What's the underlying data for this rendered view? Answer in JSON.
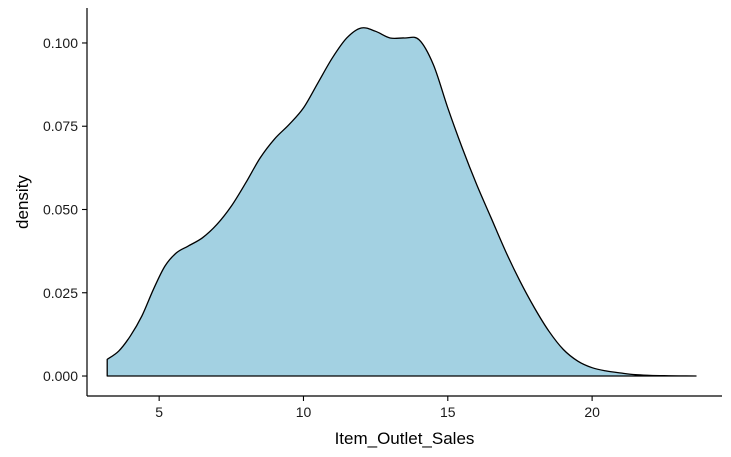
{
  "chart_data": {
    "type": "area",
    "title": "",
    "xlabel": "Item_Outlet_Sales",
    "ylabel": "density",
    "xlim": [
      2.5,
      24.5
    ],
    "ylim": [
      -0.006,
      0.1105
    ],
    "x_ticks": [
      5,
      10,
      15,
      20
    ],
    "y_ticks": [
      0.0,
      0.025,
      0.05,
      0.075,
      0.1
    ],
    "x_tick_labels": [
      "5",
      "10",
      "15",
      "20"
    ],
    "y_tick_labels": [
      "0.000",
      "0.025",
      "0.050",
      "0.075",
      "0.100"
    ],
    "grid": false,
    "legend": "none",
    "fill_color": "#a3d1e2",
    "line_color": "#000000",
    "series": [
      {
        "x": [
          3.2,
          3.6,
          4.0,
          4.4,
          4.8,
          5.2,
          5.6,
          6.0,
          6.5,
          7.0,
          7.5,
          8.0,
          8.5,
          9.0,
          9.5,
          10.0,
          10.5,
          11.0,
          11.5,
          12.0,
          12.5,
          13.0,
          13.5,
          14.0,
          14.5,
          15.0,
          15.5,
          16.0,
          16.5,
          17.0,
          17.5,
          18.0,
          18.5,
          19.0,
          19.5,
          20.0,
          20.5,
          21.0,
          21.5,
          22.0,
          22.5,
          23.0,
          23.6
        ],
        "y": [
          0.005,
          0.0075,
          0.012,
          0.018,
          0.026,
          0.033,
          0.037,
          0.039,
          0.0415,
          0.0455,
          0.051,
          0.058,
          0.0655,
          0.0712,
          0.0755,
          0.0805,
          0.088,
          0.0955,
          0.1015,
          0.1045,
          0.1035,
          0.1015,
          0.1015,
          0.101,
          0.0935,
          0.0805,
          0.0685,
          0.0575,
          0.0475,
          0.0375,
          0.0285,
          0.0205,
          0.0135,
          0.008,
          0.0045,
          0.0025,
          0.0015,
          0.0009,
          0.0004,
          0.0002,
          0.0001,
          5e-05,
          0.0
        ]
      }
    ]
  }
}
